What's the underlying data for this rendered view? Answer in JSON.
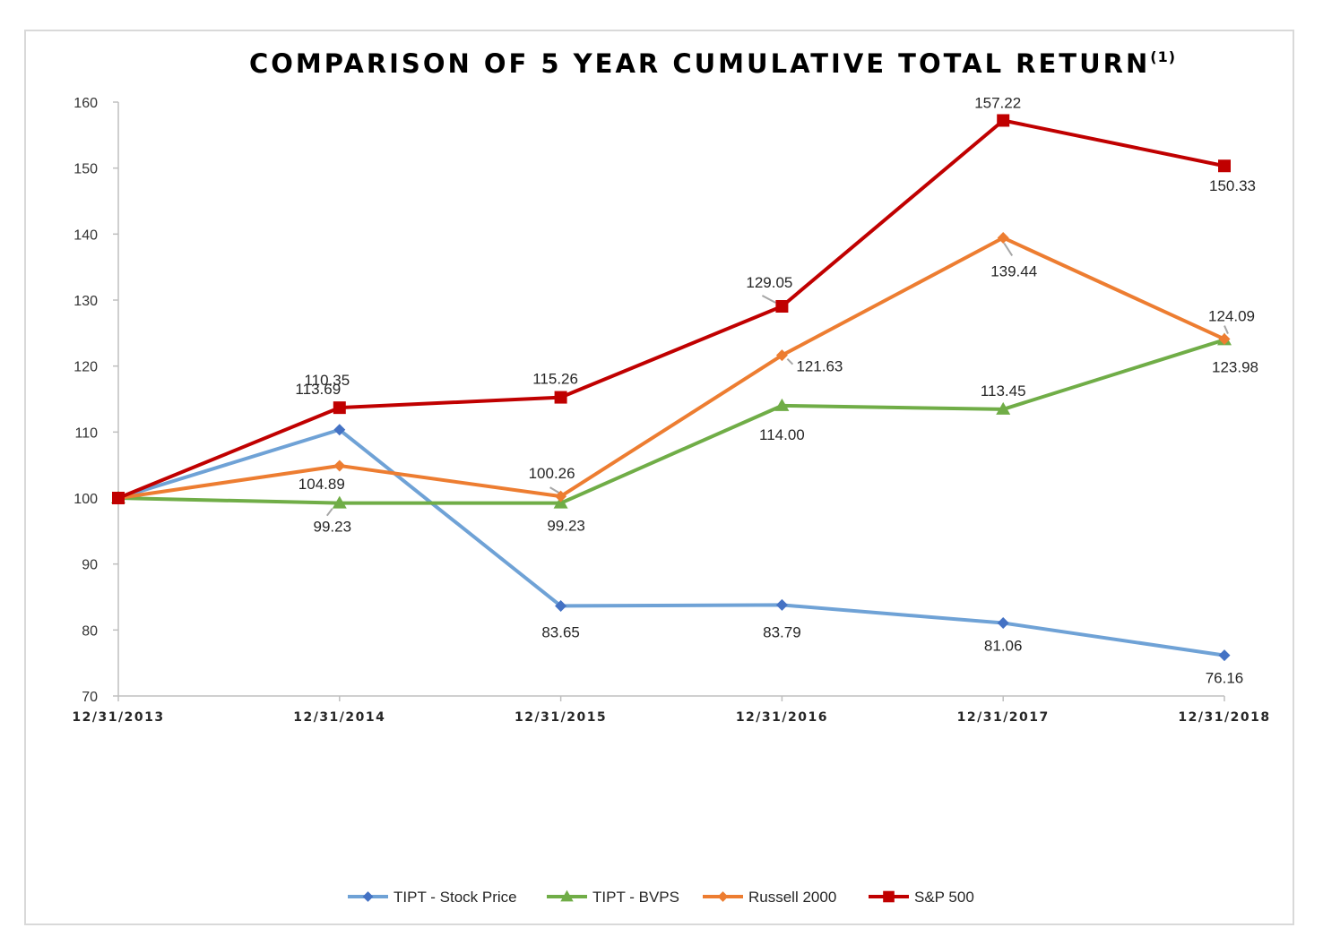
{
  "chart_data": {
    "type": "line",
    "title": "COMPARISON OF 5 YEAR CUMULATIVE TOTAL RETURN",
    "title_superscript": "(1)",
    "categories": [
      "12/31/2013",
      "12/31/2014",
      "12/31/2015",
      "12/31/2016",
      "12/31/2017",
      "12/31/2018"
    ],
    "ylim": [
      70,
      160
    ],
    "yticks": [
      "70",
      "80",
      "90",
      "100",
      "110",
      "120",
      "130",
      "140",
      "150",
      "160"
    ],
    "grid": false,
    "legend": "bottom",
    "series": [
      {
        "name": "TIPT - Stock Price",
        "color": "#6fa2d6",
        "marker_color": "#4472c4",
        "marker": "diamond",
        "values": [
          100,
          110.35,
          83.65,
          83.79,
          81.06,
          76.16
        ],
        "labels": [
          "",
          "110.35",
          "83.65",
          "83.79",
          "81.06",
          "76.16"
        ]
      },
      {
        "name": "TIPT - BVPS",
        "color": "#70ad47",
        "marker_color": "#70ad47",
        "marker": "triangle",
        "values": [
          100,
          99.23,
          99.23,
          114.0,
          113.45,
          123.98
        ],
        "labels": [
          "",
          "99.23",
          "99.23",
          "114.00",
          "113.45",
          "123.98"
        ]
      },
      {
        "name": "Russell 2000",
        "color": "#ed7d31",
        "marker_color": "#ed7d31",
        "marker": "diamond",
        "values": [
          100,
          104.89,
          100.26,
          121.63,
          139.44,
          124.09
        ],
        "labels": [
          "",
          "104.89",
          "100.26",
          "121.63",
          "139.44",
          "124.09"
        ]
      },
      {
        "name": "S&P 500",
        "color": "#c00000",
        "marker_color": "#c00000",
        "marker": "square",
        "values": [
          100,
          113.69,
          115.26,
          129.05,
          157.22,
          150.33
        ],
        "labels": [
          "",
          "113.69",
          "115.26",
          "129.05",
          "157.22",
          "150.33"
        ]
      }
    ]
  }
}
